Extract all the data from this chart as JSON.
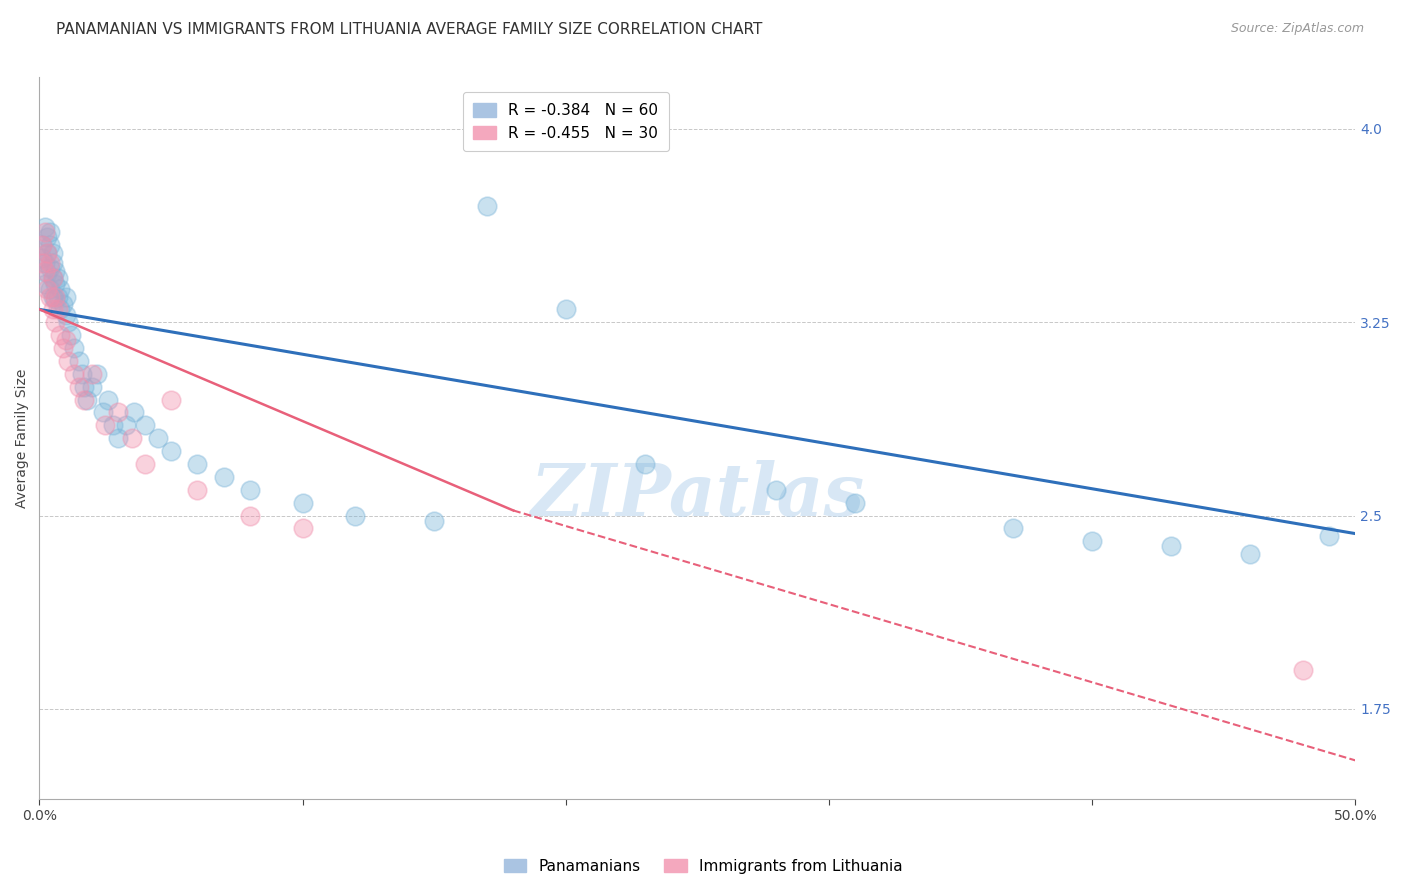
{
  "title": "PANAMANIAN VS IMMIGRANTS FROM LITHUANIA AVERAGE FAMILY SIZE CORRELATION CHART",
  "source": "Source: ZipAtlas.com",
  "ylabel": "Average Family Size",
  "yticks": [
    1.75,
    2.5,
    3.25,
    4.0
  ],
  "xlim": [
    0.0,
    0.5
  ],
  "ylim": [
    1.4,
    4.2
  ],
  "watermark": "ZIPatlas",
  "legend_r": [
    {
      "label": "R = -0.384   N = 60",
      "color": "#aac4e2"
    },
    {
      "label": "R = -0.455   N = 30",
      "color": "#f4a8be"
    }
  ],
  "legend_labels": [
    "Panamanians",
    "Immigrants from Lithuania"
  ],
  "blue_scatter_x": [
    0.001,
    0.001,
    0.002,
    0.002,
    0.002,
    0.003,
    0.003,
    0.003,
    0.004,
    0.004,
    0.004,
    0.004,
    0.005,
    0.005,
    0.005,
    0.005,
    0.006,
    0.006,
    0.006,
    0.007,
    0.007,
    0.008,
    0.008,
    0.009,
    0.01,
    0.01,
    0.011,
    0.012,
    0.013,
    0.015,
    0.016,
    0.017,
    0.018,
    0.02,
    0.022,
    0.024,
    0.026,
    0.028,
    0.03,
    0.033,
    0.036,
    0.04,
    0.045,
    0.05,
    0.06,
    0.07,
    0.08,
    0.1,
    0.12,
    0.15,
    0.17,
    0.2,
    0.23,
    0.28,
    0.31,
    0.37,
    0.4,
    0.43,
    0.46,
    0.49
  ],
  "blue_scatter_y": [
    3.55,
    3.5,
    3.62,
    3.48,
    3.4,
    3.58,
    3.52,
    3.44,
    3.6,
    3.55,
    3.46,
    3.38,
    3.52,
    3.48,
    3.42,
    3.35,
    3.45,
    3.4,
    3.34,
    3.42,
    3.35,
    3.38,
    3.3,
    3.32,
    3.28,
    3.35,
    3.25,
    3.2,
    3.15,
    3.1,
    3.05,
    3.0,
    2.95,
    3.0,
    3.05,
    2.9,
    2.95,
    2.85,
    2.8,
    2.85,
    2.9,
    2.85,
    2.8,
    2.75,
    2.7,
    2.65,
    2.6,
    2.55,
    2.5,
    2.48,
    3.7,
    3.3,
    2.7,
    2.6,
    2.55,
    2.45,
    2.4,
    2.38,
    2.35,
    2.42
  ],
  "pink_scatter_x": [
    0.001,
    0.001,
    0.002,
    0.002,
    0.003,
    0.003,
    0.004,
    0.004,
    0.005,
    0.005,
    0.006,
    0.006,
    0.007,
    0.008,
    0.009,
    0.01,
    0.011,
    0.013,
    0.015,
    0.017,
    0.02,
    0.025,
    0.03,
    0.035,
    0.04,
    0.05,
    0.06,
    0.08,
    0.1,
    0.48
  ],
  "pink_scatter_y": [
    3.55,
    3.48,
    3.6,
    3.45,
    3.52,
    3.38,
    3.48,
    3.35,
    3.42,
    3.3,
    3.35,
    3.25,
    3.3,
    3.2,
    3.15,
    3.18,
    3.1,
    3.05,
    3.0,
    2.95,
    3.05,
    2.85,
    2.9,
    2.8,
    2.7,
    2.95,
    2.6,
    2.5,
    2.45,
    1.9
  ],
  "blue_line_x": [
    0.0,
    0.5
  ],
  "blue_line_y": [
    3.3,
    2.43
  ],
  "pink_solid_line_x": [
    0.0,
    0.18
  ],
  "pink_solid_line_y": [
    3.3,
    2.52
  ],
  "pink_dash_line_x": [
    0.18,
    0.5
  ],
  "pink_dash_line_y": [
    2.52,
    1.55
  ],
  "scatter_size": 180,
  "scatter_alpha": 0.4,
  "blue_color": "#7ab4d8",
  "pink_color": "#f08fac",
  "blue_line_color": "#2e6fba",
  "pink_line_color": "#e8607a",
  "grid_color": "#c8c8c8",
  "background_color": "#ffffff",
  "title_fontsize": 11,
  "axis_label_fontsize": 10,
  "tick_fontsize": 10,
  "right_ytick_color": "#4472c4"
}
